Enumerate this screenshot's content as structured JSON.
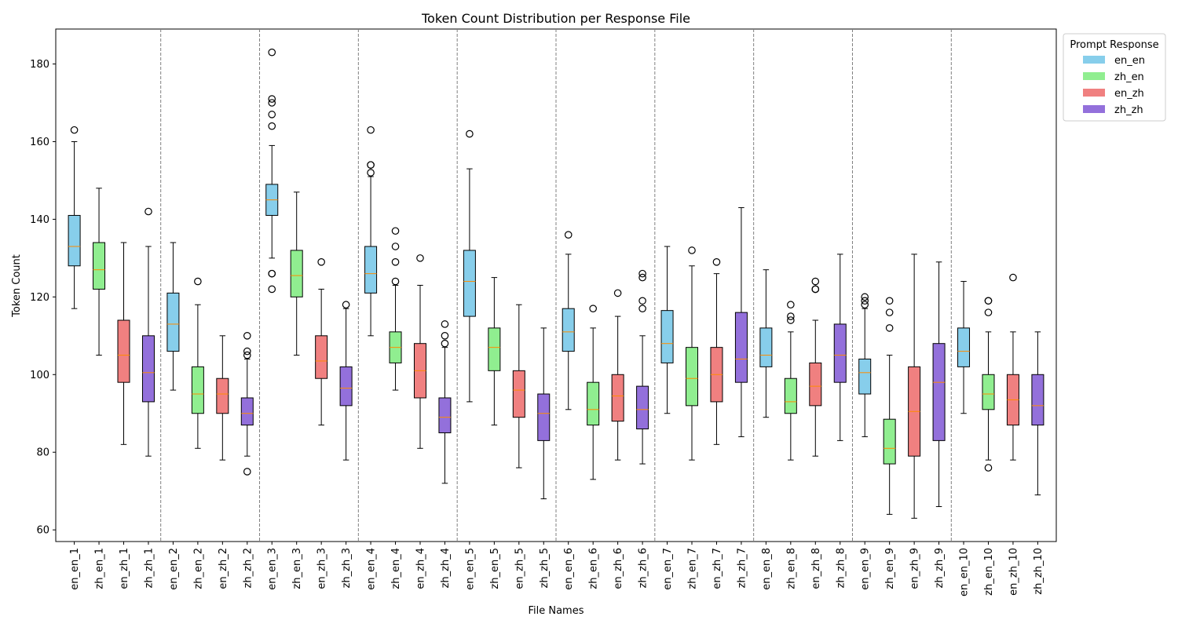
{
  "chart_data": {
    "type": "box",
    "title": "Token Count Distribution per Response File",
    "xlabel": "File Names",
    "ylabel": "Token Count",
    "ylim": [
      57,
      189
    ],
    "yticks": [
      60,
      80,
      100,
      120,
      140,
      160,
      180
    ],
    "grid": false,
    "legend": {
      "title": "Prompt Response",
      "placement": "outside-top-right",
      "entries": [
        {
          "label": "en_en",
          "color": "#87CEEB"
        },
        {
          "label": "zh_en",
          "color": "#90EE90"
        },
        {
          "label": "en_zh",
          "color": "#F08080"
        },
        {
          "label": "zh_zh",
          "color": "#9370DB"
        }
      ]
    },
    "median_color": "#FF8C00",
    "group_separators": true,
    "boxes": [
      {
        "label": "en_en_1",
        "group": "en_en",
        "whisker_low": 117,
        "q1": 128,
        "median": 133,
        "q3": 141,
        "whisker_high": 160,
        "outliers": [
          163
        ]
      },
      {
        "label": "zh_en_1",
        "group": "zh_en",
        "whisker_low": 105,
        "q1": 122,
        "median": 127,
        "q3": 134,
        "whisker_high": 148,
        "outliers": []
      },
      {
        "label": "en_zh_1",
        "group": "en_zh",
        "whisker_low": 82,
        "q1": 98,
        "median": 105,
        "q3": 114,
        "whisker_high": 134,
        "outliers": []
      },
      {
        "label": "zh_zh_1",
        "group": "zh_zh",
        "whisker_low": 79,
        "q1": 93,
        "median": 100.5,
        "q3": 110,
        "whisker_high": 133,
        "outliers": [
          142
        ]
      },
      {
        "label": "en_en_2",
        "group": "en_en",
        "whisker_low": 96,
        "q1": 106,
        "median": 113,
        "q3": 121,
        "whisker_high": 134,
        "outliers": []
      },
      {
        "label": "zh_en_2",
        "group": "zh_en",
        "whisker_low": 81,
        "q1": 90,
        "median": 95,
        "q3": 102,
        "whisker_high": 118,
        "outliers": [
          124
        ]
      },
      {
        "label": "en_zh_2",
        "group": "en_zh",
        "whisker_low": 78,
        "q1": 90,
        "median": 95,
        "q3": 99,
        "whisker_high": 110,
        "outliers": []
      },
      {
        "label": "zh_zh_2",
        "group": "zh_zh",
        "whisker_low": 79,
        "q1": 87,
        "median": 90,
        "q3": 94,
        "whisker_high": 104,
        "outliers": [
          75,
          105,
          106,
          110
        ]
      },
      {
        "label": "en_en_3",
        "group": "en_en",
        "whisker_low": 130,
        "q1": 141,
        "median": 145,
        "q3": 149,
        "whisker_high": 159,
        "outliers": [
          122,
          126,
          126,
          164,
          167,
          170,
          171,
          183
        ]
      },
      {
        "label": "zh_en_3",
        "group": "zh_en",
        "whisker_low": 105,
        "q1": 120,
        "median": 125.5,
        "q3": 132,
        "whisker_high": 147,
        "outliers": []
      },
      {
        "label": "en_zh_3",
        "group": "en_zh",
        "whisker_low": 87,
        "q1": 99,
        "median": 103.5,
        "q3": 110,
        "whisker_high": 122,
        "outliers": [
          129
        ]
      },
      {
        "label": "zh_zh_3",
        "group": "zh_zh",
        "whisker_low": 78,
        "q1": 92,
        "median": 96.5,
        "q3": 102,
        "whisker_high": 117,
        "outliers": [
          118
        ]
      },
      {
        "label": "en_en_4",
        "group": "en_en",
        "whisker_low": 110,
        "q1": 121,
        "median": 126,
        "q3": 133,
        "whisker_high": 151,
        "outliers": [
          152,
          154,
          154,
          163
        ]
      },
      {
        "label": "zh_en_4",
        "group": "zh_en",
        "whisker_low": 96,
        "q1": 103,
        "median": 107,
        "q3": 111,
        "whisker_high": 123,
        "outliers": [
          124,
          129,
          133,
          137
        ]
      },
      {
        "label": "en_zh_4",
        "group": "en_zh",
        "whisker_low": 81,
        "q1": 94,
        "median": 101,
        "q3": 108,
        "whisker_high": 123,
        "outliers": [
          130
        ]
      },
      {
        "label": "zh_zh_4",
        "group": "zh_zh",
        "whisker_low": 72,
        "q1": 85,
        "median": 89,
        "q3": 94,
        "whisker_high": 107,
        "outliers": [
          108,
          110,
          113
        ]
      },
      {
        "label": "en_en_5",
        "group": "en_en",
        "whisker_low": 93,
        "q1": 115,
        "median": 124,
        "q3": 132,
        "whisker_high": 153,
        "outliers": [
          162
        ]
      },
      {
        "label": "zh_en_5",
        "group": "zh_en",
        "whisker_low": 87,
        "q1": 101,
        "median": 107,
        "q3": 112,
        "whisker_high": 125,
        "outliers": []
      },
      {
        "label": "en_zh_5",
        "group": "en_zh",
        "whisker_low": 76,
        "q1": 89,
        "median": 96,
        "q3": 101,
        "whisker_high": 118,
        "outliers": []
      },
      {
        "label": "zh_zh_5",
        "group": "zh_zh",
        "whisker_low": 68,
        "q1": 83,
        "median": 90,
        "q3": 95,
        "whisker_high": 112,
        "outliers": []
      },
      {
        "label": "en_en_6",
        "group": "en_en",
        "whisker_low": 91,
        "q1": 106,
        "median": 111,
        "q3": 117,
        "whisker_high": 131,
        "outliers": [
          136
        ]
      },
      {
        "label": "zh_en_6",
        "group": "zh_en",
        "whisker_low": 73,
        "q1": 87,
        "median": 91,
        "q3": 98,
        "whisker_high": 112,
        "outliers": [
          117
        ]
      },
      {
        "label": "en_zh_6",
        "group": "en_zh",
        "whisker_low": 78,
        "q1": 88,
        "median": 94.5,
        "q3": 100,
        "whisker_high": 115,
        "outliers": [
          121
        ]
      },
      {
        "label": "zh_zh_6",
        "group": "zh_zh",
        "whisker_low": 77,
        "q1": 86,
        "median": 91,
        "q3": 97,
        "whisker_high": 110,
        "outliers": [
          117,
          119,
          125,
          126
        ]
      },
      {
        "label": "en_en_7",
        "group": "en_en",
        "whisker_low": 90,
        "q1": 103,
        "median": 108,
        "q3": 116.5,
        "whisker_high": 133,
        "outliers": []
      },
      {
        "label": "zh_en_7",
        "group": "zh_en",
        "whisker_low": 78,
        "q1": 92,
        "median": 99,
        "q3": 107,
        "whisker_high": 128,
        "outliers": [
          132
        ]
      },
      {
        "label": "en_zh_7",
        "group": "en_zh",
        "whisker_low": 82,
        "q1": 93,
        "median": 100,
        "q3": 107,
        "whisker_high": 126,
        "outliers": [
          129
        ]
      },
      {
        "label": "zh_zh_7",
        "group": "zh_zh",
        "whisker_low": 84,
        "q1": 98,
        "median": 104,
        "q3": 116,
        "whisker_high": 143,
        "outliers": []
      },
      {
        "label": "en_en_8",
        "group": "en_en",
        "whisker_low": 89,
        "q1": 102,
        "median": 105,
        "q3": 112,
        "whisker_high": 127,
        "outliers": []
      },
      {
        "label": "zh_en_8",
        "group": "zh_en",
        "whisker_low": 78,
        "q1": 90,
        "median": 93,
        "q3": 99,
        "whisker_high": 111,
        "outliers": [
          114,
          115,
          118
        ]
      },
      {
        "label": "en_zh_8",
        "group": "en_zh",
        "whisker_low": 79,
        "q1": 92,
        "median": 97,
        "q3": 103,
        "whisker_high": 114,
        "outliers": [
          122,
          122,
          124
        ]
      },
      {
        "label": "zh_zh_8",
        "group": "zh_zh",
        "whisker_low": 83,
        "q1": 98,
        "median": 105,
        "q3": 113,
        "whisker_high": 131,
        "outliers": []
      },
      {
        "label": "en_en_9",
        "group": "en_en",
        "whisker_low": 84,
        "q1": 95,
        "median": 100.5,
        "q3": 104,
        "whisker_high": 117,
        "outliers": [
          118,
          119,
          120
        ]
      },
      {
        "label": "zh_en_9",
        "group": "zh_en",
        "whisker_low": 64,
        "q1": 77,
        "median": 81,
        "q3": 88.5,
        "whisker_high": 105,
        "outliers": [
          112,
          116,
          119
        ]
      },
      {
        "label": "en_zh_9",
        "group": "en_zh",
        "whisker_low": 63,
        "q1": 79,
        "median": 90.5,
        "q3": 102,
        "whisker_high": 131,
        "outliers": []
      },
      {
        "label": "zh_zh_9",
        "group": "zh_zh",
        "whisker_low": 66,
        "q1": 83,
        "median": 98,
        "q3": 108,
        "whisker_high": 129,
        "outliers": []
      },
      {
        "label": "en_en_10",
        "group": "en_en",
        "whisker_low": 90,
        "q1": 102,
        "median": 106,
        "q3": 112,
        "whisker_high": 124,
        "outliers": []
      },
      {
        "label": "zh_en_10",
        "group": "zh_en",
        "whisker_low": 78,
        "q1": 91,
        "median": 95,
        "q3": 100,
        "whisker_high": 111,
        "outliers": [
          76,
          116,
          119,
          119
        ]
      },
      {
        "label": "en_zh_10",
        "group": "en_zh",
        "whisker_low": 78,
        "q1": 87,
        "median": 93.5,
        "q3": 100,
        "whisker_high": 111,
        "outliers": [
          125
        ]
      },
      {
        "label": "zh_zh_10",
        "group": "zh_zh",
        "whisker_low": 69,
        "q1": 87,
        "median": 92,
        "q3": 100,
        "whisker_high": 111,
        "outliers": []
      }
    ]
  }
}
